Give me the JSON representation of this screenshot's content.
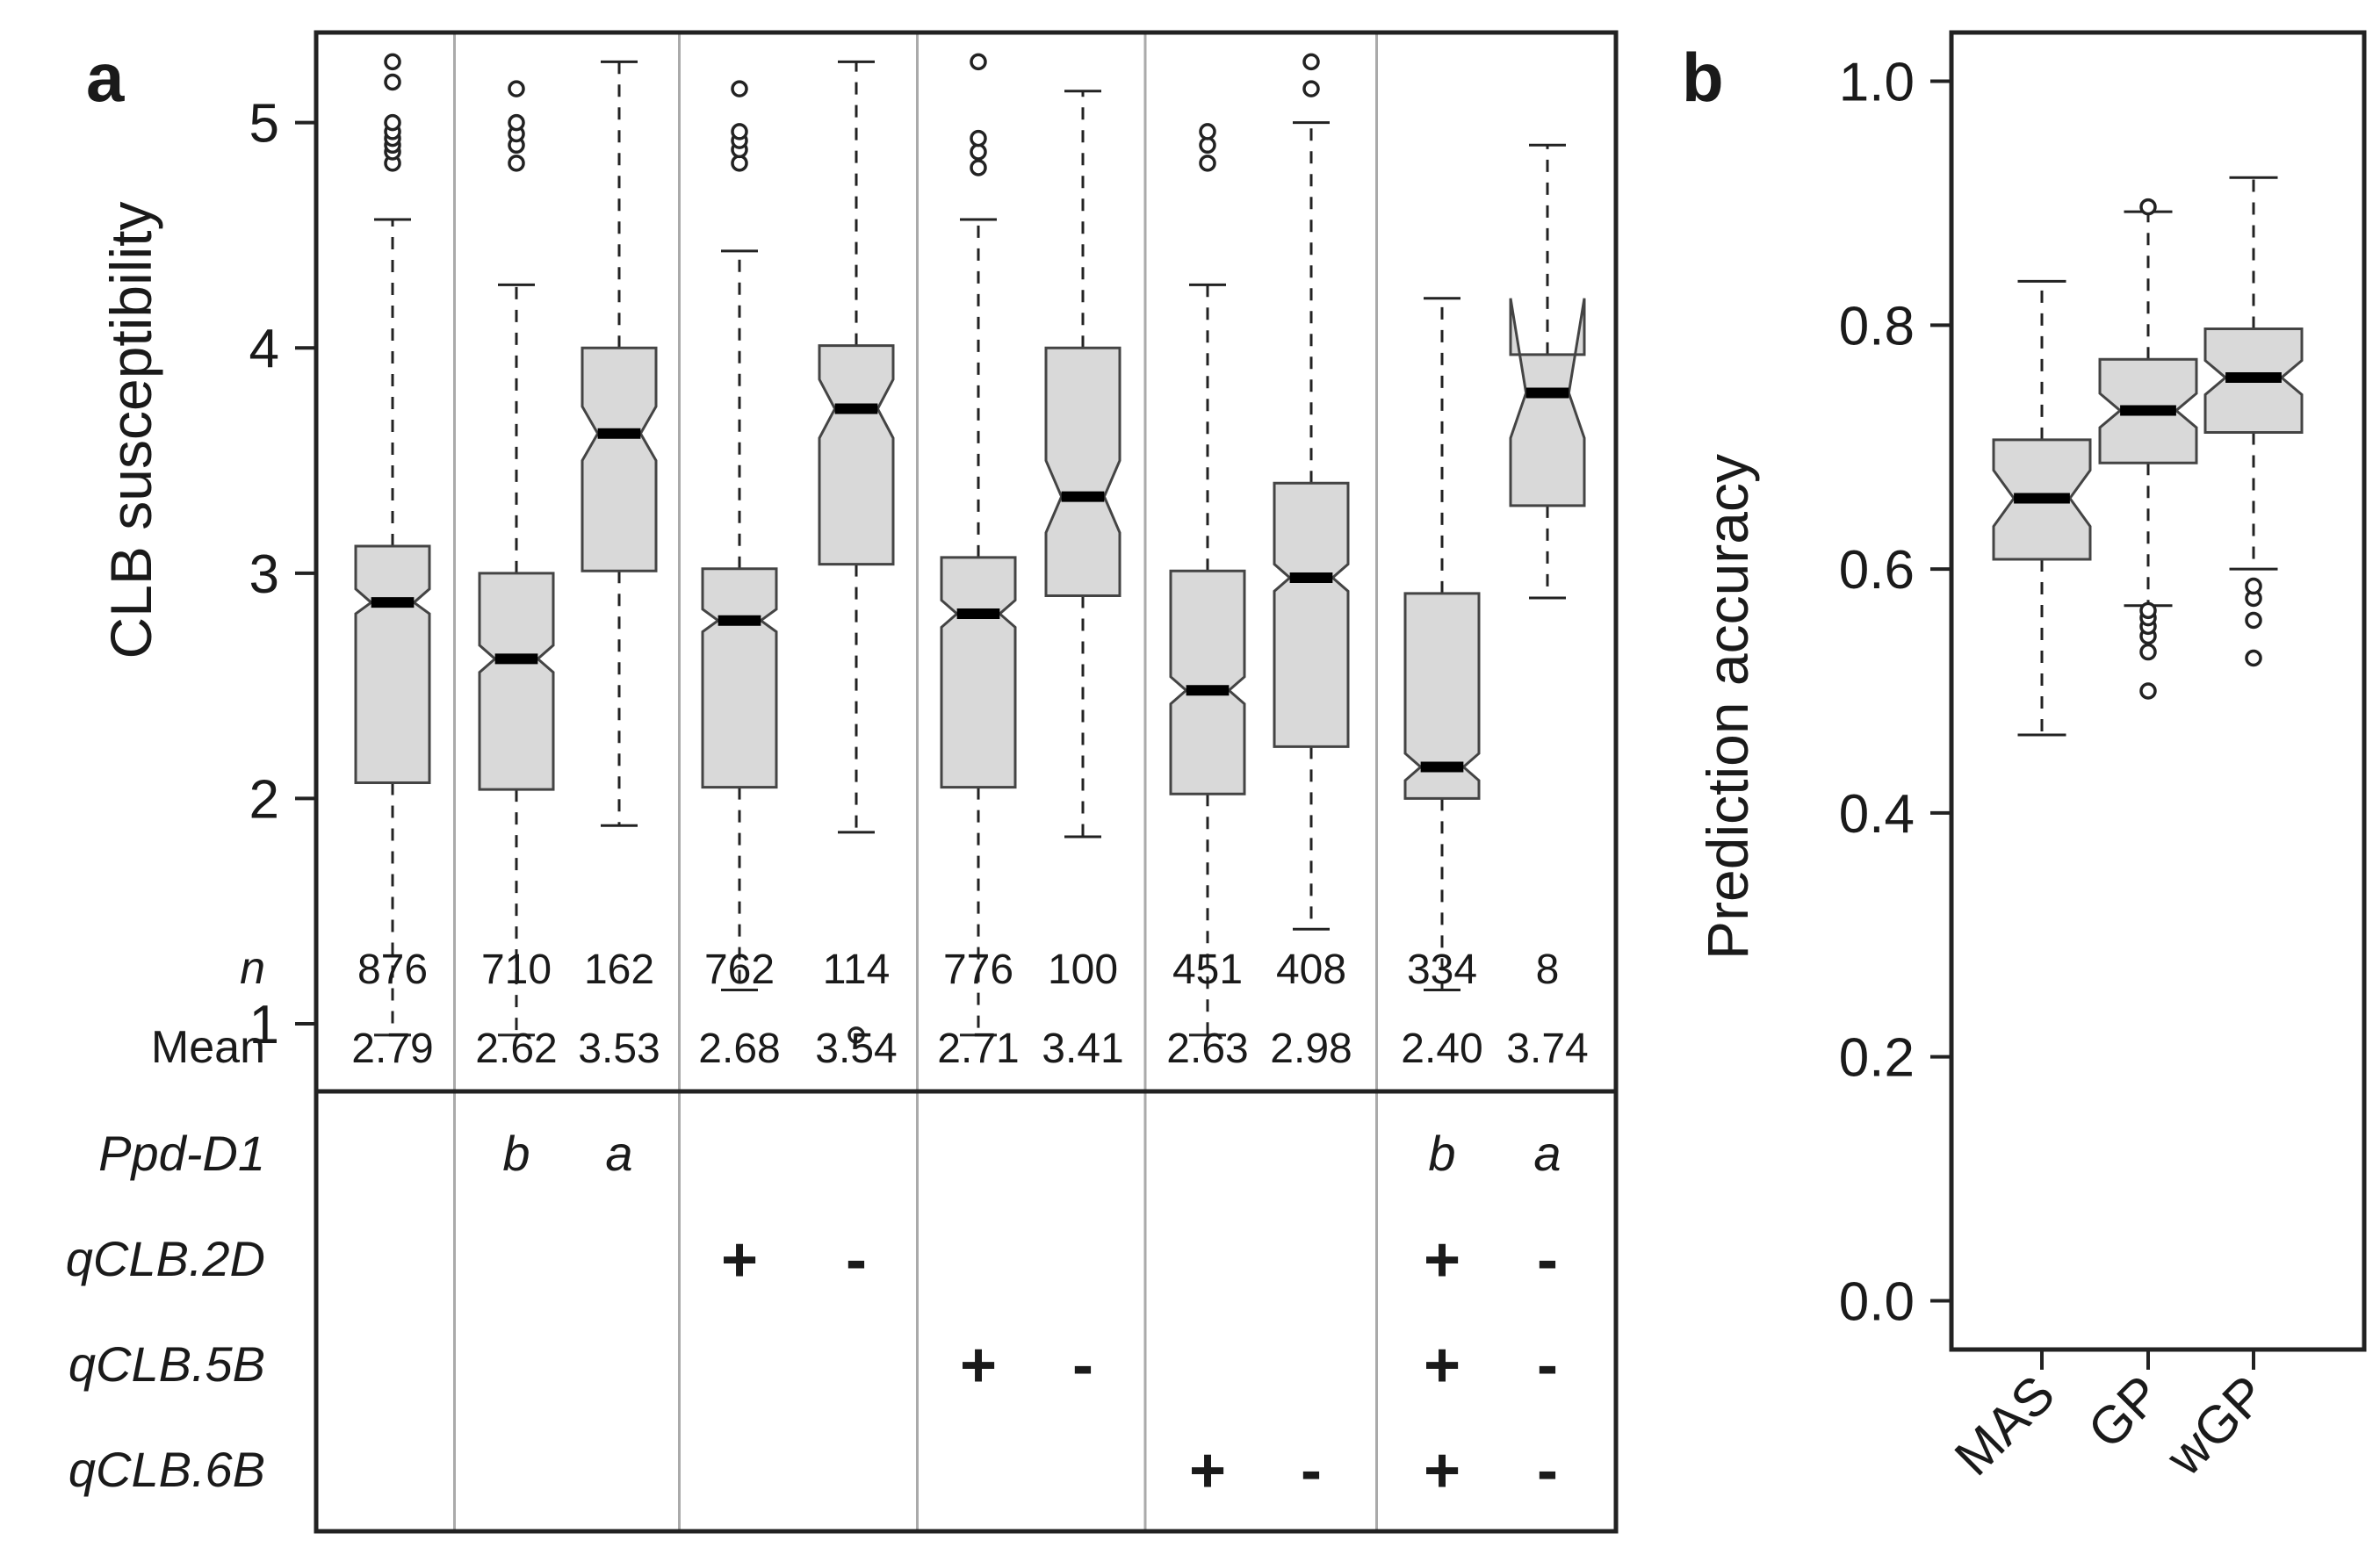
{
  "colors": {
    "box_fill": "#d9d9d9",
    "box_stroke": "#444444",
    "frame": "#222222",
    "separator": "#aaaaaa"
  },
  "chart_data": [
    {
      "panel_label": "a",
      "type": "boxplot",
      "ylabel": "CLB susceptibility",
      "ylim": [
        0.7,
        5.4
      ],
      "yticks": [
        1,
        2,
        3,
        4,
        5
      ],
      "row_labels": {
        "n": "n",
        "mean": "Mean"
      },
      "marker_rows": [
        "Ppd-D1",
        "qCLB.2D",
        "qCLB.5B",
        "qCLB.6B"
      ],
      "groups": [
        {
          "n": "876",
          "mean": "2.79",
          "lw": 0.95,
          "q1": 2.07,
          "med": 2.87,
          "q3": 3.12,
          "uw": 4.57,
          "notch": [
            2.82,
            2.93
          ],
          "outliers": [
            4.82,
            4.87,
            4.9,
            4.93,
            4.96,
            5.0,
            5.18,
            5.27
          ],
          "markers": [
            "",
            "",
            "",
            ""
          ]
        },
        {
          "n": "710",
          "mean": "2.62",
          "lw": 0.95,
          "q1": 2.04,
          "med": 2.62,
          "q3": 3.0,
          "uw": 4.28,
          "notch": [
            2.56,
            2.68
          ],
          "outliers": [
            4.82,
            4.9,
            4.95,
            5.0,
            5.15
          ],
          "markers": [
            "b",
            "",
            "",
            ""
          ]
        },
        {
          "n": "162",
          "mean": "3.53",
          "lw": 1.88,
          "q1": 3.01,
          "med": 3.62,
          "q3": 4.0,
          "uw": 5.27,
          "notch": [
            3.5,
            3.74
          ],
          "outliers": [],
          "markers": [
            "a",
            "",
            "",
            ""
          ]
        },
        {
          "n": "762",
          "mean": "2.68",
          "lw": 1.15,
          "q1": 2.05,
          "med": 2.79,
          "q3": 3.02,
          "uw": 4.43,
          "notch": [
            2.74,
            2.84
          ],
          "outliers": [
            4.82,
            4.88,
            4.92,
            4.96,
            5.15
          ],
          "markers": [
            "",
            "+",
            "",
            ""
          ]
        },
        {
          "n": "114",
          "mean": "3.54",
          "lw": 1.85,
          "q1": 3.04,
          "med": 3.73,
          "q3": 4.01,
          "uw": 5.27,
          "notch": [
            3.6,
            3.86
          ],
          "outliers": [
            0.95
          ],
          "markers": [
            "",
            "-",
            "",
            ""
          ]
        },
        {
          "n": "776",
          "mean": "2.71",
          "lw": 0.95,
          "q1": 2.05,
          "med": 2.82,
          "q3": 3.07,
          "uw": 4.57,
          "notch": [
            2.76,
            2.88
          ],
          "outliers": [
            4.8,
            4.87,
            4.93,
            5.27
          ],
          "markers": [
            "",
            "",
            "+",
            ""
          ]
        },
        {
          "n": "100",
          "mean": "3.41",
          "lw": 1.83,
          "q1": 2.9,
          "med": 3.34,
          "q3": 4.0,
          "uw": 5.14,
          "notch": [
            3.18,
            3.5
          ],
          "outliers": [],
          "markers": [
            "",
            "",
            "-",
            ""
          ]
        },
        {
          "n": "451",
          "mean": "2.63",
          "lw": 0.95,
          "q1": 2.02,
          "med": 2.48,
          "q3": 3.01,
          "uw": 4.28,
          "notch": [
            2.42,
            2.54
          ],
          "outliers": [
            4.82,
            4.9,
            4.96
          ],
          "markers": [
            "",
            "",
            "",
            "+"
          ]
        },
        {
          "n": "408",
          "mean": "2.98",
          "lw": 1.42,
          "q1": 2.23,
          "med": 2.98,
          "q3": 3.4,
          "uw": 5.0,
          "notch": [
            2.92,
            3.04
          ],
          "outliers": [
            5.15,
            5.27
          ],
          "markers": [
            "",
            "",
            "",
            "-"
          ]
        },
        {
          "n": "334",
          "mean": "2.40",
          "lw": 1.15,
          "q1": 2.0,
          "med": 2.14,
          "q3": 2.91,
          "uw": 4.22,
          "notch": [
            2.08,
            2.2
          ],
          "outliers": [],
          "markers": [
            "b",
            "+",
            "+",
            "+"
          ]
        },
        {
          "n": "8",
          "mean": "3.74",
          "lw": 2.89,
          "q1": 3.3,
          "med": 3.8,
          "q3": 3.97,
          "uw": 4.9,
          "notch": [
            3.6,
            4.22
          ],
          "outliers": [],
          "markers": [
            "a",
            "-",
            "-",
            "-"
          ]
        }
      ],
      "separators_after": [
        0,
        2,
        4,
        6,
        8
      ]
    },
    {
      "panel_label": "b",
      "type": "boxplot",
      "ylabel": "Prediction accuracy",
      "ylim": [
        -0.04,
        1.04
      ],
      "yticks": [
        "0.0",
        "0.2",
        "0.4",
        "0.6",
        "0.8",
        "1.0"
      ],
      "categories": [
        "MAS",
        "GP",
        "wGP"
      ],
      "boxes": [
        {
          "lw": 0.464,
          "q1": 0.608,
          "med": 0.658,
          "q3": 0.706,
          "uw": 0.836,
          "notch": [
            0.635,
            0.681
          ],
          "outliers": []
        },
        {
          "lw": 0.57,
          "q1": 0.687,
          "med": 0.73,
          "q3": 0.772,
          "uw": 0.893,
          "notch": [
            0.716,
            0.744
          ],
          "outliers": [
            0.5,
            0.532,
            0.545,
            0.553,
            0.56,
            0.566,
            0.897
          ]
        },
        {
          "lw": 0.6,
          "q1": 0.712,
          "med": 0.757,
          "q3": 0.797,
          "uw": 0.921,
          "notch": [
            0.743,
            0.771
          ],
          "outliers": [
            0.527,
            0.558,
            0.576,
            0.586
          ]
        }
      ]
    }
  ]
}
